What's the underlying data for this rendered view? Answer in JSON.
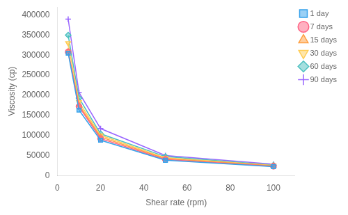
{
  "chart_data": {
    "type": "line",
    "x_label": "Shear rate (rpm)",
    "y_label": "Viscosity (cp)",
    "x": [
      5,
      10,
      20,
      50,
      100
    ],
    "series": [
      {
        "name": "1 day",
        "values": [
          305000,
          163000,
          88000,
          38000,
          22000
        ],
        "marker": "square",
        "line_style": "solid"
      },
      {
        "name": "7 days",
        "values": [
          308000,
          172000,
          92000,
          40000,
          23000
        ],
        "marker": "circle",
        "line_style": "solid"
      },
      {
        "name": "15 days",
        "values": [
          310000,
          176000,
          96000,
          42000,
          24000
        ],
        "marker": "triangle",
        "line_style": "solid"
      },
      {
        "name": "30 days",
        "values": [
          330000,
          183000,
          100000,
          44000,
          25000
        ],
        "marker": "triangle_down",
        "line_style": "solid"
      },
      {
        "name": "60 days",
        "values": [
          350000,
          193000,
          104000,
          47000,
          26000
        ],
        "marker": "diamond",
        "line_style": "solid"
      },
      {
        "name": "90 days",
        "values": [
          390000,
          207000,
          117000,
          50000,
          28000
        ],
        "marker": "plus",
        "line_style": "solid"
      }
    ],
    "xlim": [
      0,
      110
    ],
    "ylim": [
      0,
      420000
    ],
    "xticks": [
      0,
      20,
      40,
      60,
      80,
      100
    ],
    "yticks": [
      0,
      50000,
      100000,
      150000,
      200000,
      250000,
      300000,
      350000,
      400000
    ],
    "grid": false,
    "legend": "upper right"
  }
}
